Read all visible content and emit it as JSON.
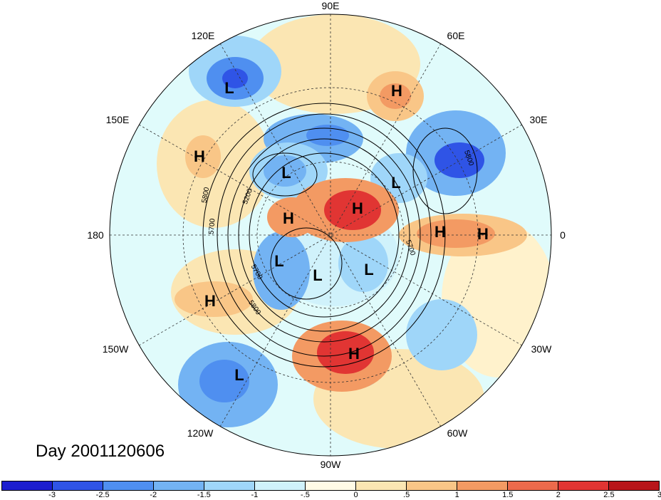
{
  "map": {
    "title": "Day 2001120606",
    "projection": "north-polar-stereographic",
    "longitude_labels": [
      "90E",
      "60E",
      "30E",
      "0",
      "30W",
      "60W",
      "90W",
      "120W",
      "150W",
      "180",
      "150E",
      "120E"
    ],
    "contour_labels": [
      "5200",
      "5700",
      "5800",
      "5700",
      "5800",
      "5700",
      "5800"
    ],
    "centers": [
      {
        "type": "L",
        "name": "low-east-asia"
      },
      {
        "type": "H",
        "name": "high-ural"
      },
      {
        "type": "H",
        "name": "high-north-pacific-west"
      },
      {
        "type": "L",
        "name": "low-east-siberia"
      },
      {
        "type": "L",
        "name": "low-west-siberia"
      },
      {
        "type": "L",
        "name": "low-scandinavia-east"
      },
      {
        "type": "H",
        "name": "high-arctic-russia"
      },
      {
        "type": "H",
        "name": "high-arctic"
      },
      {
        "type": "H",
        "name": "high-europe-west"
      },
      {
        "type": "H",
        "name": "high-europe-east"
      },
      {
        "type": "L",
        "name": "low-alaska"
      },
      {
        "type": "L",
        "name": "low-canada"
      },
      {
        "type": "L",
        "name": "low-hudson"
      },
      {
        "type": "H",
        "name": "high-northeast-pacific"
      },
      {
        "type": "H",
        "name": "high-eastern-us"
      },
      {
        "type": "L",
        "name": "low-central-pacific"
      }
    ],
    "colors": {
      "ocean_neutral": "#e0fbfb",
      "land_neutral": "#fff8e0"
    }
  },
  "colorbar": {
    "colors": [
      "#1c1ecf",
      "#2f54e6",
      "#4f8ff0",
      "#73b3f3",
      "#9fd6f9",
      "#d0f2fb",
      "#fffbe6",
      "#fbe6b3",
      "#f9c687",
      "#f39a63",
      "#ec6a4c",
      "#e13533",
      "#b8151a"
    ],
    "ticks": [
      "-3",
      "-2.5",
      "-2",
      "-1.5",
      "-1",
      "-.5",
      "0",
      ".5",
      "1",
      "1.5",
      "2",
      "2.5",
      "3"
    ]
  }
}
